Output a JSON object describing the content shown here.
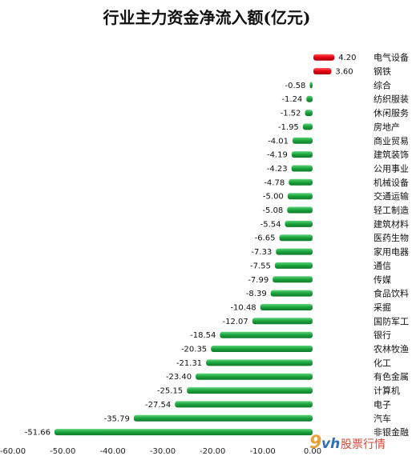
{
  "chart_data": {
    "type": "bar",
    "orientation": "horizontal",
    "title": "行业主力资金净流入额(亿元)",
    "categories": [
      "电气设备",
      "钢铁",
      "综合",
      "纺织服装",
      "休闲服务",
      "房地产",
      "商业贸易",
      "建筑装饰",
      "公用事业",
      "机械设备",
      "交通运输",
      "轻工制造",
      "建筑材料",
      "医药生物",
      "家用电器",
      "通信",
      "传媒",
      "食品饮料",
      "采掘",
      "国防军工",
      "银行",
      "农林牧渔",
      "化工",
      "有色金属",
      "计算机",
      "电子",
      "汽车",
      "非银金融"
    ],
    "values": [
      4.2,
      3.6,
      -0.58,
      -1.24,
      -1.52,
      -1.95,
      -4.01,
      -4.19,
      -4.23,
      -4.78,
      -5.0,
      -5.08,
      -5.54,
      -6.65,
      -7.33,
      -7.55,
      -7.99,
      -8.39,
      -10.48,
      -12.07,
      -18.54,
      -20.35,
      -21.31,
      -23.4,
      -25.15,
      -27.54,
      -35.79,
      -51.66
    ],
    "value_labels": [
      "4.20",
      "3.60",
      "-0.58",
      "-1.24",
      "-1.52",
      "-1.95",
      "-4.01",
      "-4.19",
      "-4.23",
      "-4.78",
      "-5.00",
      "-5.08",
      "-5.54",
      "-6.65",
      "-7.33",
      "-7.55",
      "-7.99",
      "-8.39",
      "-10.48",
      "-12.07",
      "-18.54",
      "-20.35",
      "-21.31",
      "-23.40",
      "-25.15",
      "-27.54",
      "-35.79",
      "-51.66"
    ],
    "xlim": [
      -60,
      0
    ],
    "x_ticks": [
      "-60.00",
      "-50.00",
      "-40.00",
      "-30.00",
      "-20.00",
      "-10.00",
      "0.00"
    ],
    "grid": false,
    "colors": {
      "positive": "#e60012",
      "negative": "#1aa23c"
    }
  },
  "watermark": {
    "logo_9": "9",
    "logo_vh": "vh",
    "text": "股票行情"
  }
}
